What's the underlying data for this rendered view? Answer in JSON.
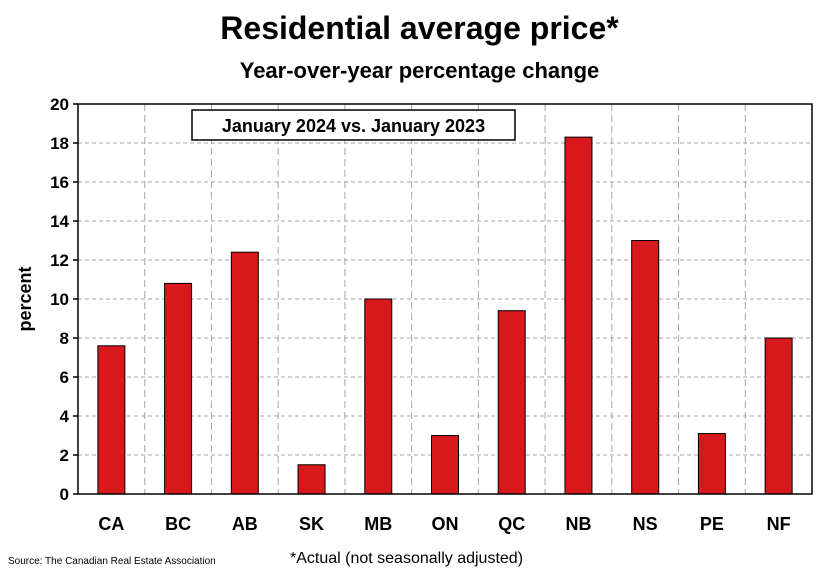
{
  "chart_data": {
    "type": "bar",
    "title": "Residential average price*",
    "subtitle": "Year-over-year percentage change",
    "annotation": "January 2024 vs. January 2023",
    "ylabel": "percent",
    "xlabel": "",
    "ylim": [
      0,
      20
    ],
    "yticks": [
      0,
      2,
      4,
      6,
      8,
      10,
      12,
      14,
      16,
      18,
      20
    ],
    "categories": [
      "CA",
      "BC",
      "AB",
      "SK",
      "MB",
      "ON",
      "QC",
      "NB",
      "NS",
      "PE",
      "NF"
    ],
    "values": [
      7.6,
      10.8,
      12.4,
      1.5,
      10.0,
      3.0,
      9.4,
      18.3,
      13.0,
      3.1,
      8.0
    ],
    "bar_color": "#d7191c",
    "grid": true,
    "legend": "none"
  },
  "source": "Source: The Canadian Real Estate Association",
  "footnote": "*Actual (not seasonally adjusted)"
}
